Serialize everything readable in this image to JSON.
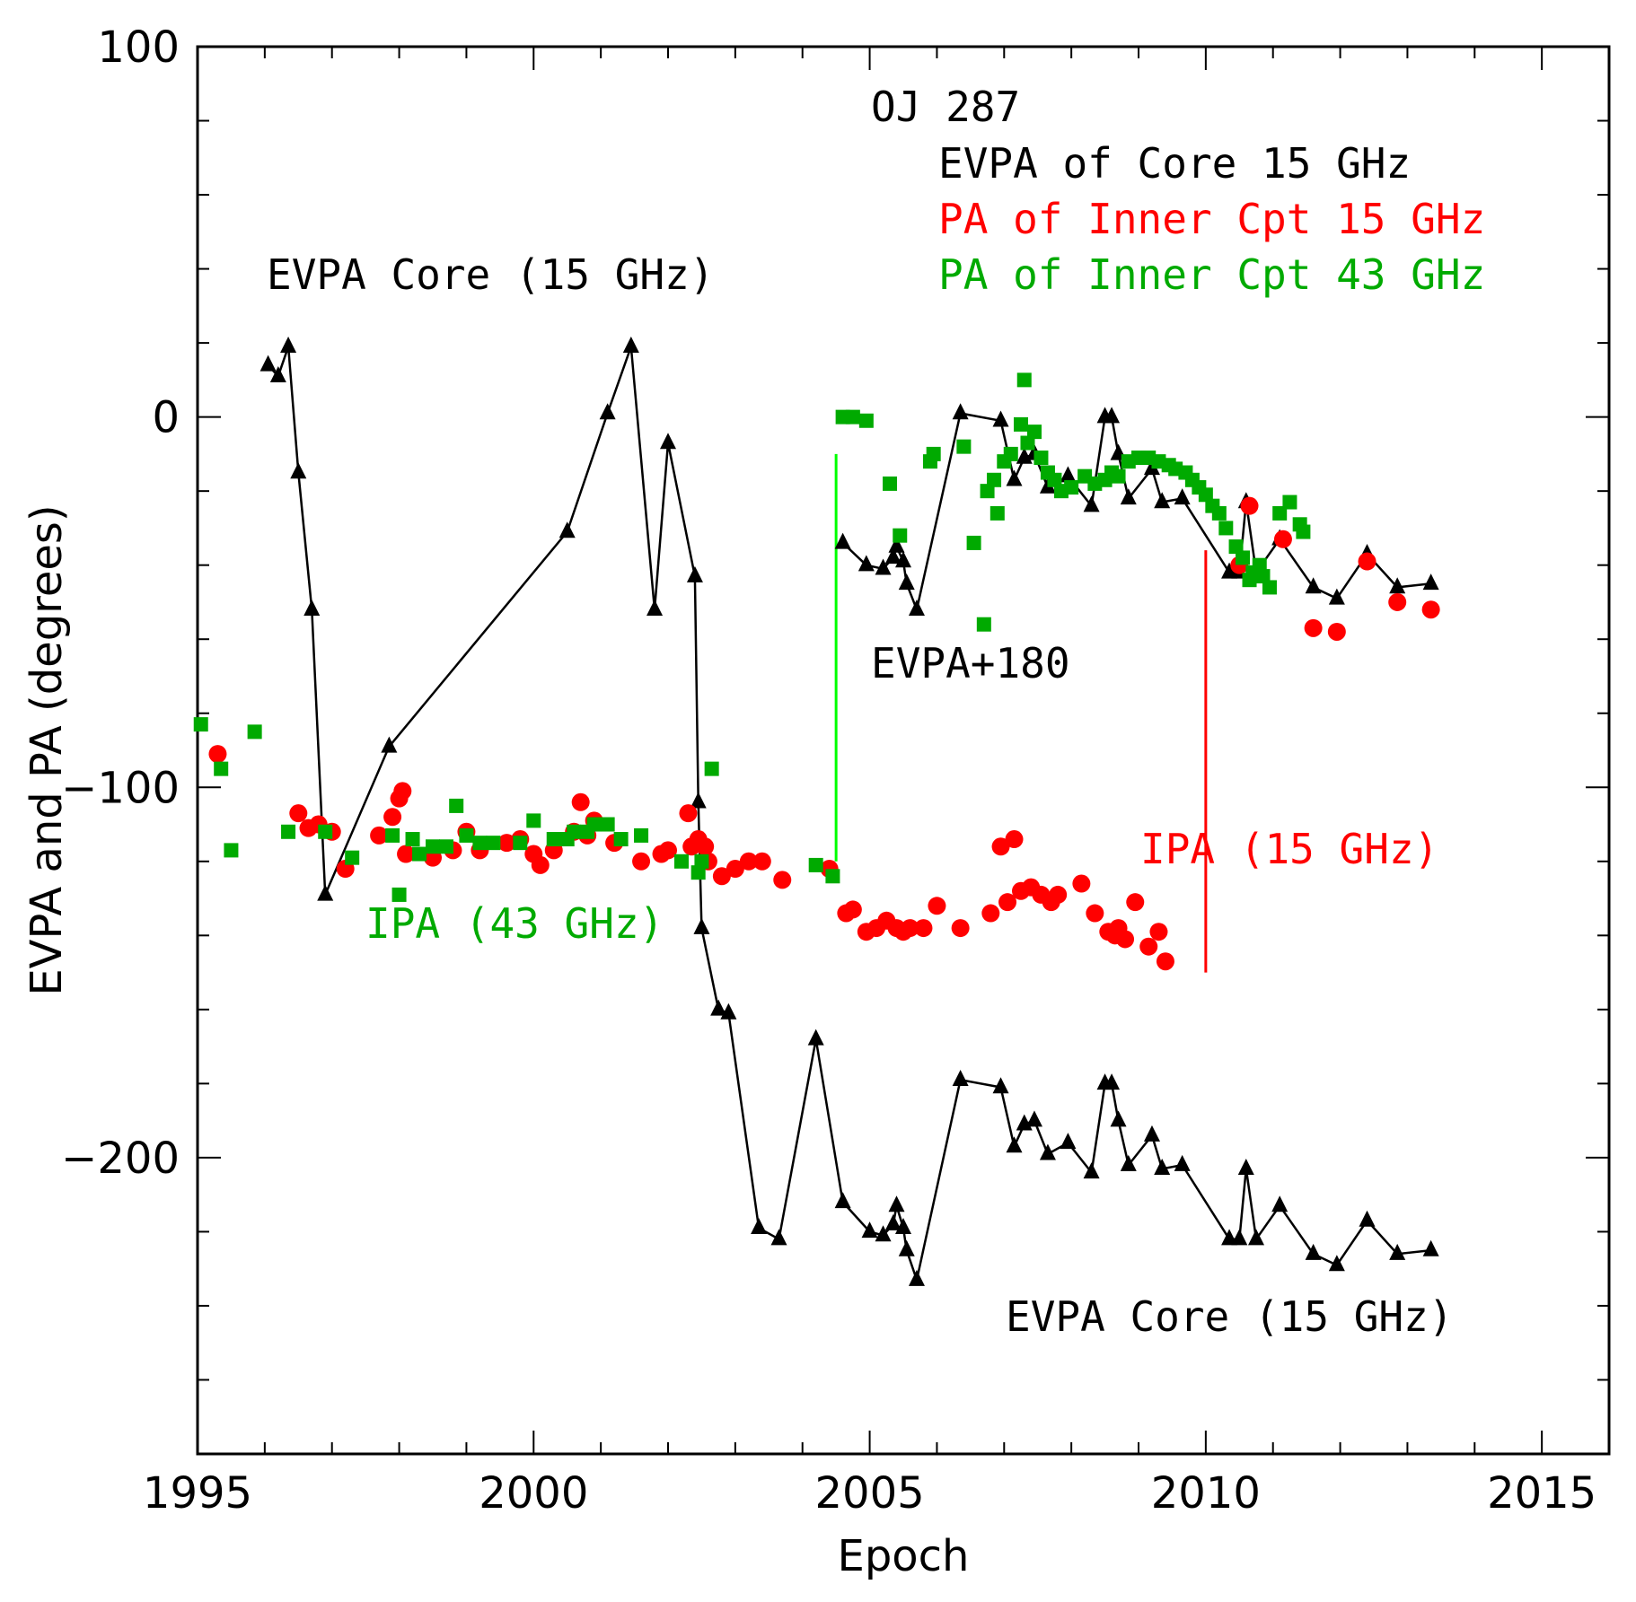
{
  "chart_data": {
    "type": "scatter",
    "title": "OJ 287",
    "xlabel": "Epoch",
    "ylabel": "EVPA and PA (degrees)",
    "xlim": [
      1995,
      2016
    ],
    "ylim": [
      -280,
      100
    ],
    "x_ticks": [
      1995,
      2000,
      2005,
      2010,
      2015
    ],
    "y_ticks": [
      100,
      0,
      -100,
      -200
    ],
    "y_tick_labels": [
      "100",
      "0",
      "−100",
      "−200"
    ],
    "grid": false,
    "legend_position": "top-right",
    "legend": [
      {
        "label": "EVPA of Core 15 GHz",
        "color": "#000000"
      },
      {
        "label": "PA of Inner Cpt 15 GHz",
        "color": "#ff0000"
      },
      {
        "label": "PA of Inner Cpt 43 GHz",
        "color": "#00aa00"
      }
    ],
    "annotations": [
      {
        "text": "EVPA Core (15 GHz)",
        "color": "#000000"
      },
      {
        "text": "EVPA+180",
        "color": "#000000"
      },
      {
        "text": "IPA (43 GHz)",
        "color": "#00aa00"
      },
      {
        "text": "IPA (15 GHz)",
        "color": "#ff0000"
      },
      {
        "text": "EVPA Core (15 GHz)",
        "color": "#000000"
      }
    ],
    "series": [
      {
        "name": "EVPA of Core 15 GHz",
        "marker": "triangle",
        "color": "#000000",
        "connected": true,
        "segments": [
          [
            [
              1996.05,
              14
            ],
            [
              1996.2,
              11
            ],
            [
              1996.35,
              19
            ],
            [
              1996.5,
              -15
            ],
            [
              1996.7,
              -52
            ],
            [
              1996.9,
              -129
            ],
            [
              1997.85,
              -89
            ],
            [
              2000.5,
              -31
            ],
            [
              2001.1,
              1
            ],
            [
              2001.45,
              19
            ],
            [
              2001.8,
              -52
            ],
            [
              2002.0,
              -7
            ],
            [
              2002.4,
              -43
            ],
            [
              2002.45,
              -104
            ],
            [
              2002.5,
              -138
            ],
            [
              2002.75,
              -160
            ],
            [
              2002.9,
              -161
            ],
            [
              2003.35,
              -219
            ],
            [
              2003.65,
              -222
            ],
            [
              2004.2,
              -168
            ],
            [
              2004.6,
              -212
            ],
            [
              2005.0,
              -220
            ],
            [
              2005.2,
              -221
            ],
            [
              2005.35,
              -218
            ],
            [
              2005.4,
              -213
            ],
            [
              2005.5,
              -219
            ],
            [
              2005.55,
              -225
            ],
            [
              2005.7,
              -233
            ],
            [
              2006.35,
              -179
            ],
            [
              2006.95,
              -181
            ],
            [
              2007.15,
              -197
            ],
            [
              2007.3,
              -191
            ],
            [
              2007.45,
              -190
            ],
            [
              2007.65,
              -199
            ],
            [
              2007.95,
              -196
            ],
            [
              2008.3,
              -204
            ],
            [
              2008.5,
              -180
            ],
            [
              2008.6,
              -180
            ],
            [
              2008.7,
              -190
            ],
            [
              2008.85,
              -202
            ],
            [
              2009.2,
              -194
            ],
            [
              2009.35,
              -203
            ],
            [
              2009.65,
              -202
            ],
            [
              2010.35,
              -222
            ],
            [
              2010.5,
              -222
            ],
            [
              2010.6,
              -203
            ],
            [
              2010.75,
              -222
            ],
            [
              2011.1,
              -213
            ],
            [
              2011.6,
              -226
            ],
            [
              2011.95,
              -229
            ],
            [
              2012.4,
              -217
            ],
            [
              2012.85,
              -226
            ],
            [
              2013.35,
              -225
            ]
          ],
          [
            [
              2004.6,
              -34
            ],
            [
              2004.95,
              -40
            ],
            [
              2005.2,
              -41
            ],
            [
              2005.35,
              -38
            ],
            [
              2005.4,
              -35
            ],
            [
              2005.5,
              -39
            ],
            [
              2005.55,
              -45
            ],
            [
              2005.7,
              -52
            ],
            [
              2006.35,
              1
            ],
            [
              2006.95,
              -1
            ],
            [
              2007.15,
              -17
            ],
            [
              2007.3,
              -11
            ],
            [
              2007.45,
              -10
            ],
            [
              2007.65,
              -19
            ],
            [
              2007.95,
              -16
            ],
            [
              2008.3,
              -24
            ],
            [
              2008.5,
              0
            ],
            [
              2008.6,
              0
            ],
            [
              2008.7,
              -10
            ],
            [
              2008.85,
              -22
            ],
            [
              2009.2,
              -14
            ],
            [
              2009.35,
              -23
            ],
            [
              2009.65,
              -22
            ],
            [
              2010.35,
              -42
            ],
            [
              2010.5,
              -42
            ],
            [
              2010.6,
              -23
            ],
            [
              2010.75,
              -42
            ],
            [
              2011.1,
              -33
            ],
            [
              2011.6,
              -46
            ],
            [
              2011.95,
              -49
            ],
            [
              2012.4,
              -37
            ],
            [
              2012.85,
              -46
            ],
            [
              2013.35,
              -45
            ]
          ]
        ]
      },
      {
        "name": "PA of Inner Cpt 15 GHz",
        "marker": "circle",
        "color": "#ff0000",
        "connected": false,
        "points": [
          [
            1995.3,
            -91
          ],
          [
            1996.5,
            -107
          ],
          [
            1996.65,
            -111
          ],
          [
            1996.8,
            -110
          ],
          [
            1997.0,
            -112
          ],
          [
            1997.2,
            -122
          ],
          [
            1997.7,
            -113
          ],
          [
            1997.9,
            -108
          ],
          [
            1998.0,
            -103
          ],
          [
            1998.05,
            -101
          ],
          [
            1998.1,
            -118
          ],
          [
            1998.5,
            -119
          ],
          [
            1998.8,
            -117
          ],
          [
            1999.0,
            -112
          ],
          [
            1999.2,
            -117
          ],
          [
            1999.6,
            -115
          ],
          [
            1999.8,
            -114
          ],
          [
            2000.0,
            -118
          ],
          [
            2000.1,
            -121
          ],
          [
            2000.3,
            -117
          ],
          [
            2000.6,
            -112
          ],
          [
            2000.7,
            -104
          ],
          [
            2000.8,
            -113
          ],
          [
            2000.9,
            -109
          ],
          [
            2001.2,
            -115
          ],
          [
            2001.6,
            -120
          ],
          [
            2001.9,
            -118
          ],
          [
            2002.0,
            -117
          ],
          [
            2002.3,
            -107
          ],
          [
            2002.35,
            -116
          ],
          [
            2002.45,
            -114
          ],
          [
            2002.55,
            -116
          ],
          [
            2002.6,
            -120
          ],
          [
            2002.8,
            -124
          ],
          [
            2003.0,
            -122
          ],
          [
            2003.2,
            -120
          ],
          [
            2003.4,
            -120
          ],
          [
            2003.7,
            -125
          ],
          [
            2004.4,
            -122
          ],
          [
            2004.65,
            -134
          ],
          [
            2004.75,
            -133
          ],
          [
            2004.95,
            -139
          ],
          [
            2005.1,
            -138
          ],
          [
            2005.25,
            -136
          ],
          [
            2005.4,
            -138
          ],
          [
            2005.5,
            -139
          ],
          [
            2005.6,
            -138
          ],
          [
            2005.8,
            -138
          ],
          [
            2006.0,
            -132
          ],
          [
            2006.35,
            -138
          ],
          [
            2006.8,
            -134
          ],
          [
            2006.95,
            -116
          ],
          [
            2007.05,
            -131
          ],
          [
            2007.15,
            -114
          ],
          [
            2007.25,
            -128
          ],
          [
            2007.4,
            -127
          ],
          [
            2007.55,
            -129
          ],
          [
            2007.7,
            -131
          ],
          [
            2007.8,
            -129
          ],
          [
            2008.15,
            -126
          ],
          [
            2008.35,
            -134
          ],
          [
            2008.55,
            -139
          ],
          [
            2008.65,
            -140
          ],
          [
            2008.7,
            -138
          ],
          [
            2008.8,
            -141
          ],
          [
            2008.95,
            -131
          ],
          [
            2009.15,
            -143
          ],
          [
            2009.3,
            -139
          ],
          [
            2009.4,
            -147
          ],
          [
            2010.5,
            -40
          ],
          [
            2010.65,
            -24
          ],
          [
            2011.15,
            -33
          ],
          [
            2011.6,
            -57
          ],
          [
            2011.95,
            -58
          ],
          [
            2012.4,
            -39
          ],
          [
            2012.85,
            -50
          ],
          [
            2013.35,
            -52
          ]
        ]
      },
      {
        "name": "PA of Inner Cpt 43 GHz",
        "marker": "square",
        "color": "#00aa00",
        "connected": false,
        "points": [
          [
            1995.05,
            -83
          ],
          [
            1995.35,
            -95
          ],
          [
            1995.5,
            -117
          ],
          [
            1995.85,
            -85
          ],
          [
            1996.35,
            -112
          ],
          [
            1996.9,
            -112
          ],
          [
            1997.3,
            -119
          ],
          [
            1997.9,
            -113
          ],
          [
            1998.0,
            -129
          ],
          [
            1998.2,
            -114
          ],
          [
            1998.3,
            -118
          ],
          [
            1998.5,
            -116
          ],
          [
            1998.7,
            -116
          ],
          [
            1998.85,
            -105
          ],
          [
            1999.0,
            -113
          ],
          [
            1999.2,
            -115
          ],
          [
            1999.4,
            -115
          ],
          [
            1999.8,
            -115
          ],
          [
            2000.0,
            -109
          ],
          [
            2000.3,
            -114
          ],
          [
            2000.5,
            -114
          ],
          [
            2000.6,
            -112
          ],
          [
            2000.8,
            -112
          ],
          [
            2000.9,
            -110
          ],
          [
            2001.1,
            -110
          ],
          [
            2001.3,
            -114
          ],
          [
            2001.6,
            -113
          ],
          [
            2002.2,
            -120
          ],
          [
            2002.45,
            -123
          ],
          [
            2002.5,
            -120
          ],
          [
            2002.65,
            -95
          ],
          [
            2004.2,
            -121
          ],
          [
            2004.45,
            -124
          ],
          [
            2004.6,
            0
          ],
          [
            2004.75,
            0
          ],
          [
            2004.95,
            -1
          ],
          [
            2005.3,
            -18
          ],
          [
            2005.45,
            -32
          ],
          [
            2005.9,
            -12
          ],
          [
            2005.95,
            -10
          ],
          [
            2006.4,
            -8
          ],
          [
            2006.55,
            -34
          ],
          [
            2006.7,
            -56
          ],
          [
            2006.75,
            -20
          ],
          [
            2006.85,
            -17
          ],
          [
            2006.9,
            -26
          ],
          [
            2007.0,
            -12
          ],
          [
            2007.1,
            -10
          ],
          [
            2007.25,
            -2
          ],
          [
            2007.3,
            10
          ],
          [
            2007.35,
            -7
          ],
          [
            2007.45,
            -4
          ],
          [
            2007.55,
            -11
          ],
          [
            2007.65,
            -15
          ],
          [
            2007.75,
            -17
          ],
          [
            2007.85,
            -20
          ],
          [
            2008.0,
            -19
          ],
          [
            2008.2,
            -16
          ],
          [
            2008.35,
            -18
          ],
          [
            2008.5,
            -17
          ],
          [
            2008.6,
            -15
          ],
          [
            2008.7,
            -16
          ],
          [
            2008.85,
            -12
          ],
          [
            2009.0,
            -11
          ],
          [
            2009.15,
            -11
          ],
          [
            2009.3,
            -12
          ],
          [
            2009.45,
            -13
          ],
          [
            2009.55,
            -14
          ],
          [
            2009.7,
            -15
          ],
          [
            2009.8,
            -17
          ],
          [
            2009.9,
            -19
          ],
          [
            2010.0,
            -21
          ],
          [
            2010.1,
            -24
          ],
          [
            2010.2,
            -26
          ],
          [
            2010.3,
            -30
          ],
          [
            2010.45,
            -35
          ],
          [
            2010.55,
            -38
          ],
          [
            2010.65,
            -44
          ],
          [
            2010.7,
            -42
          ],
          [
            2010.8,
            -40
          ],
          [
            2010.85,
            -43
          ],
          [
            2010.95,
            -46
          ],
          [
            2011.1,
            -26
          ],
          [
            2011.25,
            -23
          ],
          [
            2011.4,
            -29
          ],
          [
            2011.45,
            -31
          ]
        ]
      }
    ],
    "reference_lines": [
      {
        "x": 2004.5,
        "y_from": -10,
        "y_to": -120,
        "color": "#00ff00"
      },
      {
        "x": 2010.0,
        "y_from": -36,
        "y_to": -150,
        "color": "#ff0000"
      }
    ]
  }
}
